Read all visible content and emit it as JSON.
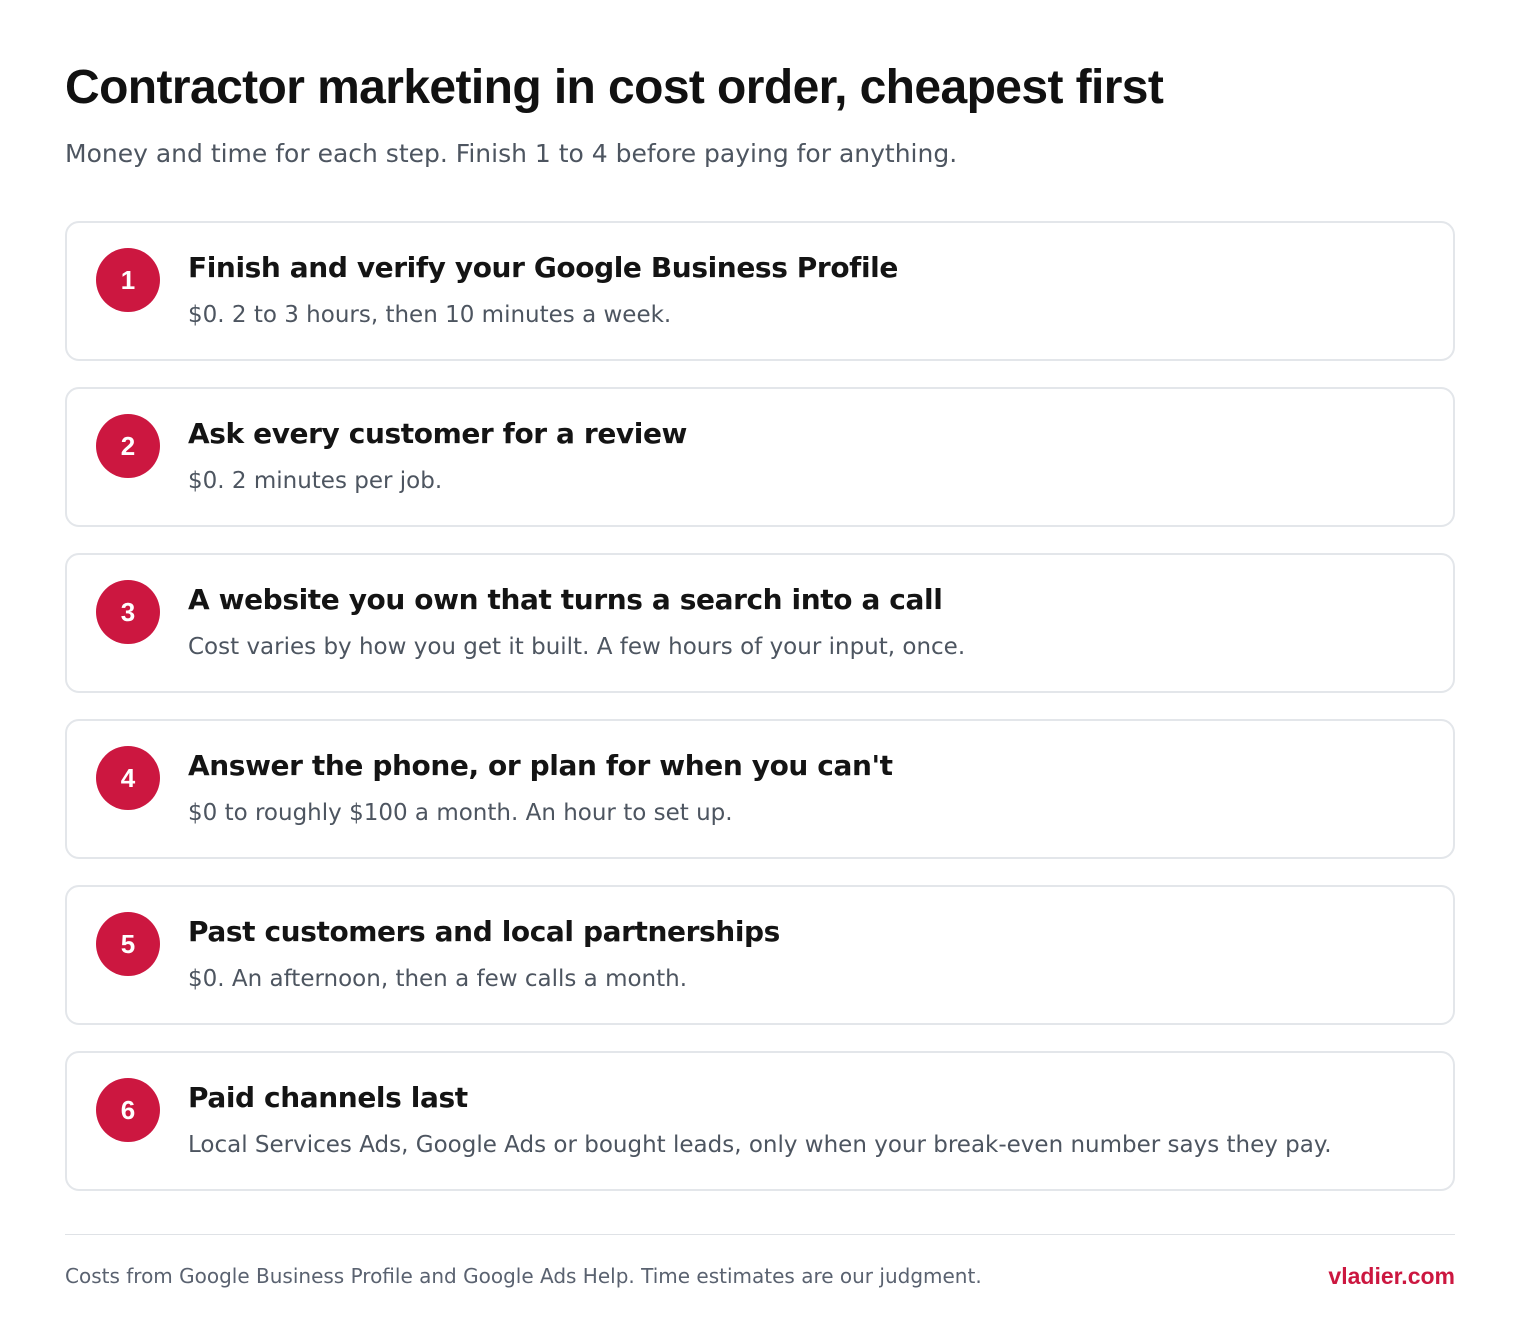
{
  "header": {
    "title": "Contractor marketing in cost order, cheapest first",
    "subtitle": "Money and time for each step. Finish 1 to 4 before paying for anything."
  },
  "steps": [
    {
      "number": "1",
      "title": "Finish and verify your Google Business Profile",
      "description": "$0. 2 to 3 hours, then 10 minutes a week."
    },
    {
      "number": "2",
      "title": "Ask every customer for a review",
      "description": "$0. 2 minutes per job."
    },
    {
      "number": "3",
      "title": "A website you own that turns a search into a call",
      "description": "Cost varies by how you get it built. A few hours of your input, once."
    },
    {
      "number": "4",
      "title": "Answer the phone, or plan for when you can't",
      "description": "$0 to roughly $100 a month. An hour to set up."
    },
    {
      "number": "5",
      "title": "Past customers and local partnerships",
      "description": "$0. An afternoon, then a few calls a month."
    },
    {
      "number": "6",
      "title": "Paid channels last",
      "description": "Local Services Ads, Google Ads or bought leads, only when your break-even number says they pay."
    }
  ],
  "footer": {
    "note": "Costs from Google Business Profile and Google Ads Help. Time estimates are our judgment.",
    "brand": "vladier.com"
  },
  "colors": {
    "accent": "#cc1740",
    "text": "#141414",
    "muted": "#4d5560",
    "border": "#e3e6ea"
  }
}
